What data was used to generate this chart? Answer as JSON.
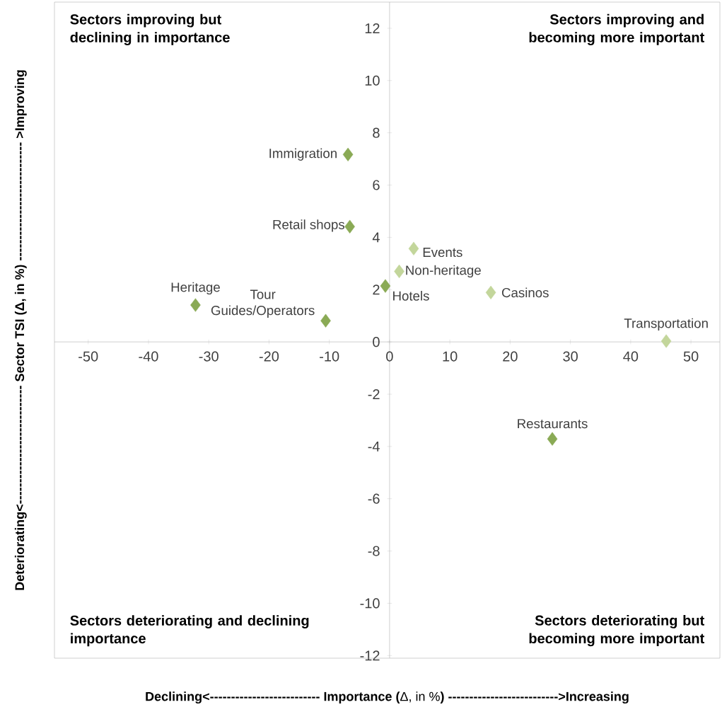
{
  "chart_data": {
    "type": "scatter",
    "xlabel": "**Declining<-------------------------- Importance (**Δ, in %**) -------------------------->Increasing**",
    "ylabel": "Deteriorating<---------------------------- Sector TSI (Δ, in %) ---------------------------- >Improving",
    "x": [
      -6.9,
      -6.6,
      -32.2,
      -10.6,
      -0.7,
      1.6,
      4.0,
      16.8,
      45.9,
      27.0
    ],
    "values": [
      7.17,
      4.41,
      1.41,
      0.81,
      2.14,
      2.7,
      3.57,
      1.89,
      0.03,
      -3.71
    ],
    "colors": [
      "#8aaa55",
      "#8aaa55",
      "#8aaa55",
      "#8aaa55",
      "#8aaa55",
      "#c3d69b",
      "#c3d69b",
      "#c3d69b",
      "#c3d69b",
      "#8aaa55"
    ],
    "marker": "diamond",
    "xlim": [
      -55.6,
      54.8
    ],
    "ylim": [
      -12.1,
      13
    ],
    "xticks": [
      -50,
      -40,
      -30,
      -20,
      -10,
      0,
      10,
      20,
      30,
      40,
      50
    ],
    "yticks": [
      -12,
      -10,
      -8,
      -6,
      -4,
      -2,
      0,
      2,
      4,
      6,
      8,
      10,
      12
    ],
    "annotations": [
      "Sectors improving but declining in importance",
      "Sectors improving and becoming more important",
      "Sectors deteriorating and declining importance",
      "Sectors deteriorating but becoming more important",
      {
        "text": "Immigration",
        "x": -6.9,
        "y": 7.17
      },
      {
        "text": "Retail shops",
        "x": -6.6,
        "y": 4.41
      },
      {
        "text": "Heritage",
        "x": -32.2,
        "y": 1.41
      },
      {
        "text": "Tour Guides/Operators",
        "x": -10.6,
        "y": 0.81
      },
      {
        "text": "Hotels",
        "x": -0.7,
        "y": 2.14
      },
      {
        "text": "Non-heritage",
        "x": 1.6,
        "y": 2.7
      },
      {
        "text": "Events",
        "x": 4.0,
        "y": 3.57
      },
      {
        "text": "Casinos",
        "x": 16.8,
        "y": 1.89
      },
      {
        "text": "Transportation",
        "x": 45.9,
        "y": 0.03
      },
      {
        "text": "Restaurants",
        "x": 27.0,
        "y": -3.71
      }
    ]
  }
}
